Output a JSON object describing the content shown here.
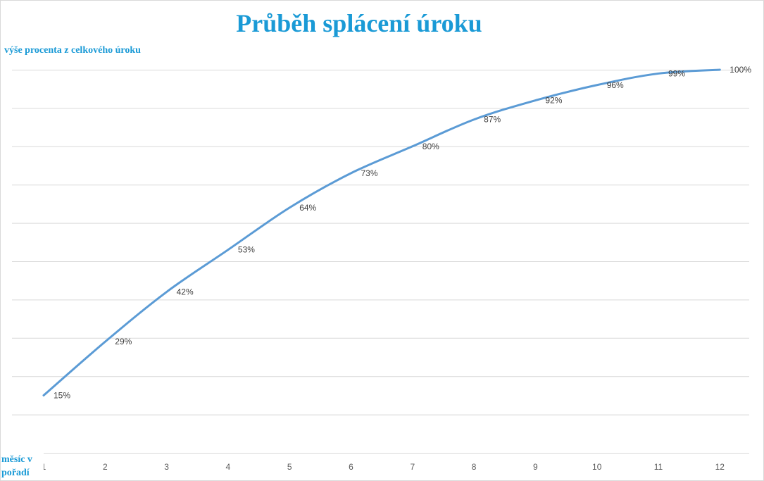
{
  "chart_data": {
    "type": "line",
    "title": "Průběh splácení úroku",
    "ylabel": "výše procenta z celkového úroku",
    "xlabel": "měsíc v pořadí",
    "categories": [
      "1",
      "2",
      "3",
      "4",
      "5",
      "6",
      "7",
      "8",
      "9",
      "10",
      "11",
      "12"
    ],
    "series": [
      {
        "values": [
          15,
          29,
          42,
          53,
          64,
          73,
          80,
          87,
          92,
          96,
          99,
          100
        ],
        "labels": [
          "15%",
          "29%",
          "42%",
          "53%",
          "64%",
          "73%",
          "80%",
          "87%",
          "92%",
          "96%",
          "99%",
          "100%"
        ],
        "color": "#5b9bd5"
      }
    ],
    "ylim": [
      0,
      100
    ],
    "grid": true,
    "legend": "none",
    "title_color": "#1a9ad6",
    "gridline_color": "#d9d9d9"
  }
}
